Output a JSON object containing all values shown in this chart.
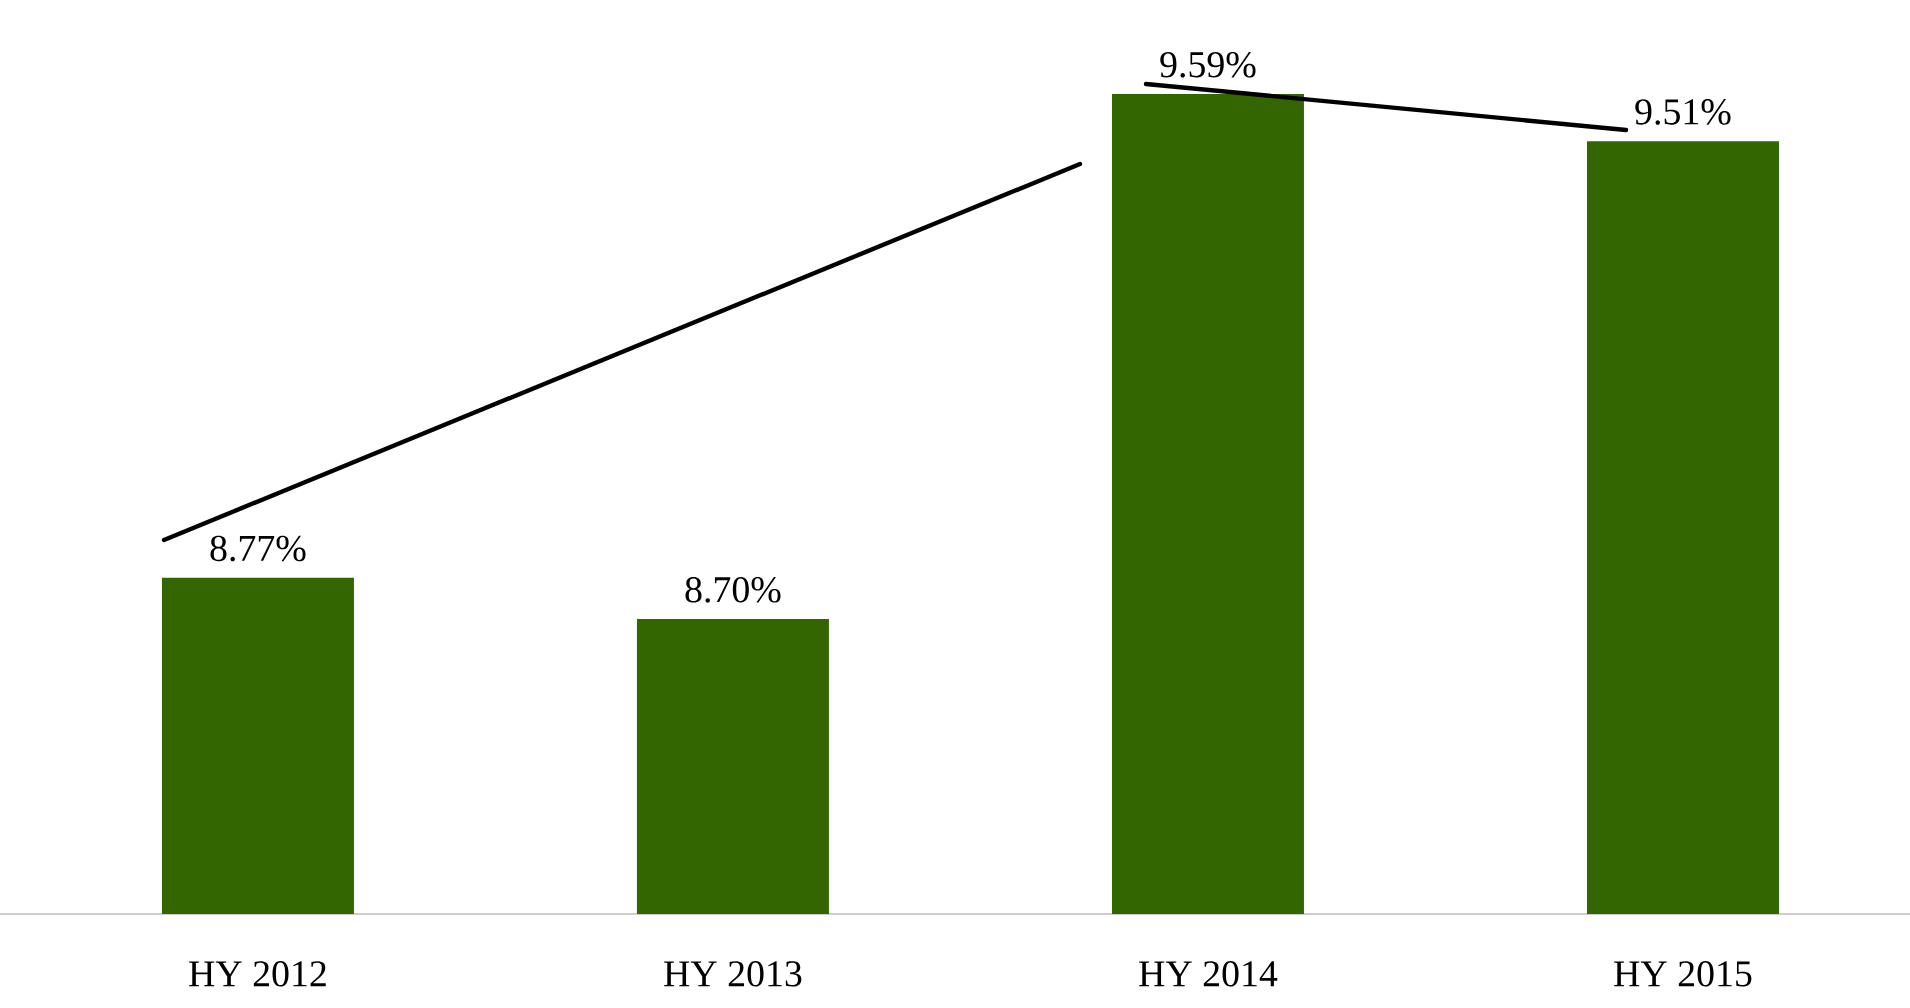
{
  "chart_data": {
    "type": "bar",
    "categories": [
      "HY 2012",
      "HY 2013",
      "HY 2014",
      "HY 2015"
    ],
    "values": [
      8.77,
      8.7,
      9.59,
      9.51
    ],
    "value_labels": [
      "8.77%",
      "8.70%",
      "9.59%",
      "9.51%"
    ],
    "color": "#336600",
    "ylim": [
      8.2,
      9.59
    ],
    "tick_labels": "x"
  }
}
